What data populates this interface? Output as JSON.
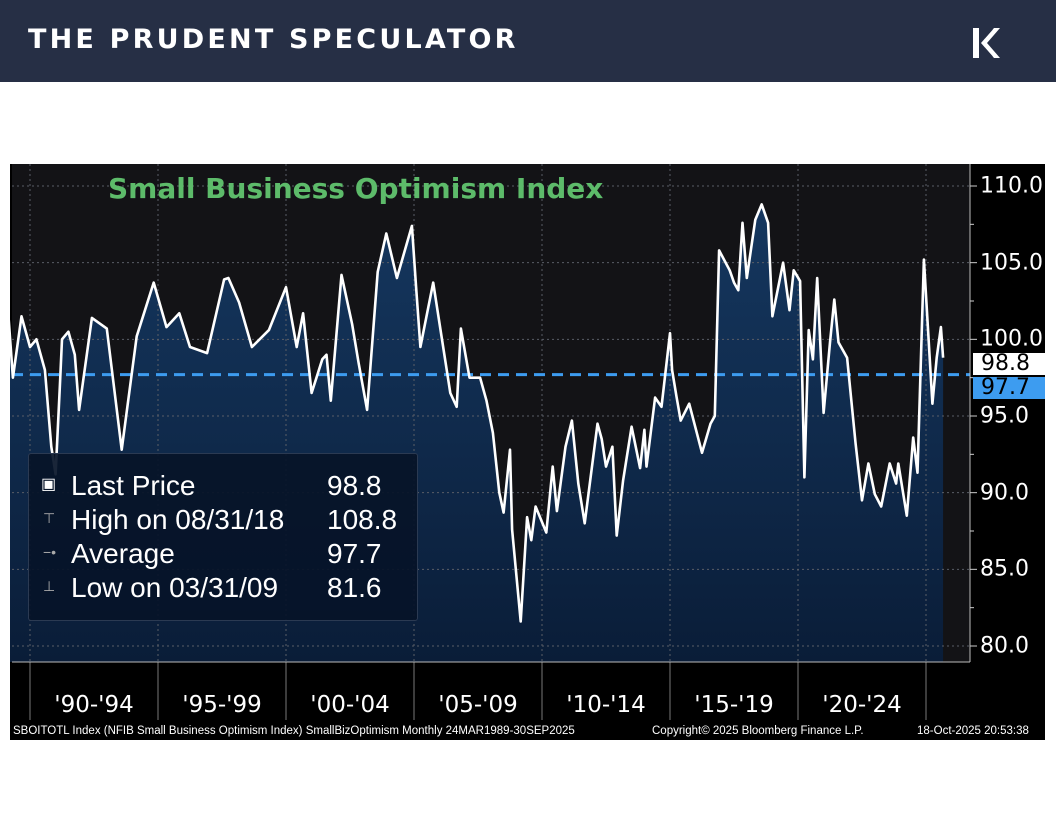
{
  "header": {
    "brand": "THE PRUDENT SPECULATOR",
    "logo_icon": "k-chevron-logo",
    "background": "#262f45"
  },
  "chart_data": {
    "type": "area",
    "title": "Small Business Optimism Index",
    "title_color": "#5dbb6a",
    "line_color": "#ffffff",
    "fill_color": "#0f2a4c",
    "average_line_color": "#3d9cf0",
    "y_axis": {
      "position": "right",
      "range": [
        80,
        110
      ],
      "ticks": [
        "110.0",
        "105.0",
        "100.0",
        "95.0",
        "90.0",
        "85.0",
        "80.0"
      ]
    },
    "x_axis": {
      "range": [
        "1989-03",
        "2025-09"
      ],
      "tick_labels": [
        "'90-'94",
        "'95-'99",
        "'00-'04",
        "'05-'09",
        "'10-'14",
        "'15-'19",
        "'20-'24"
      ]
    },
    "grid": true,
    "legend": {
      "placement": "bottom-left",
      "rows": [
        {
          "label": "Last Price",
          "value": "98.8"
        },
        {
          "label": "High on 08/31/18",
          "value": "108.8"
        },
        {
          "label": "Average",
          "value": "97.7"
        },
        {
          "label": "Low on 03/31/09",
          "value": "81.6"
        }
      ]
    },
    "last_price_tag": "98.8",
    "average_tag": "97.7",
    "average": 97.7,
    "series": [
      {
        "dates": [
          "1989-03",
          "1989-05",
          "1989-09",
          "1990-01",
          "1990-04",
          "1990-08",
          "1990-11",
          "1991-01",
          "1991-03",
          "1991-04",
          "1991-07",
          "1991-10",
          "1991-12",
          "1992-06",
          "1993-01",
          "1993-08",
          "1994-03",
          "1994-11",
          "1995-05",
          "1995-11",
          "1996-04",
          "1996-12",
          "1997-08",
          "1997-10",
          "1998-03",
          "1998-09",
          "1999-05",
          "2000-01",
          "2000-06",
          "2000-09",
          "2001-01",
          "2001-06",
          "2001-08",
          "2001-10",
          "2002-03",
          "2002-08",
          "2002-11",
          "2003-03",
          "2003-08",
          "2003-12",
          "2004-05",
          "2004-12",
          "2005-02",
          "2005-04",
          "2005-10",
          "2006-01",
          "2006-06",
          "2006-09",
          "2006-11",
          "2007-03",
          "2007-08",
          "2007-11",
          "2008-02",
          "2008-05",
          "2008-07",
          "2008-10",
          "2008-11",
          "2009-03",
          "2009-06",
          "2009-08",
          "2009-10",
          "2010-03",
          "2010-06",
          "2010-08",
          "2010-12",
          "2011-03",
          "2011-06",
          "2011-09",
          "2012-03",
          "2012-05",
          "2012-07",
          "2012-10",
          "2012-12",
          "2013-03",
          "2013-07",
          "2013-11",
          "2014-01",
          "2014-02",
          "2014-06",
          "2014-09",
          "2015-01",
          "2015-02",
          "2015-04",
          "2015-06",
          "2015-10",
          "2016-04",
          "2016-08",
          "2016-10",
          "2016-12",
          "2017-05",
          "2017-07",
          "2017-09",
          "2017-11",
          "2018-01",
          "2018-05",
          "2018-08",
          "2018-11",
          "2019-01",
          "2019-06",
          "2019-09",
          "2019-11",
          "2020-02",
          "2020-04",
          "2020-06",
          "2020-08",
          "2020-10",
          "2021-01",
          "2021-04",
          "2021-06",
          "2021-08",
          "2021-12",
          "2022-04",
          "2022-07",
          "2022-10",
          "2023-01",
          "2023-04",
          "2023-08",
          "2023-11",
          "2023-12",
          "2024-04",
          "2024-07",
          "2024-09",
          "2024-12",
          "2025-04",
          "2025-06",
          "2025-08",
          "2025-09"
        ],
        "values": [
          101.3,
          97.5,
          101.5,
          99.5,
          100,
          98,
          93,
          91.2,
          97,
          100,
          100.5,
          99,
          95.4,
          101.4,
          100.7,
          92.8,
          100.2,
          103.7,
          100.8,
          101.7,
          99.5,
          99.1,
          103.9,
          104,
          102.4,
          99.5,
          100.6,
          103.4,
          99.5,
          101.7,
          96.5,
          98.7,
          99,
          96,
          104.2,
          101,
          98.5,
          95.4,
          104.4,
          106.9,
          104,
          107.4,
          103.4,
          99.5,
          103.7,
          101,
          96.5,
          95.6,
          100.7,
          97.5,
          97.5,
          96,
          93.9,
          90,
          88.7,
          92.8,
          87.6,
          81.6,
          88.4,
          86.9,
          89.1,
          87.4,
          91.7,
          88.8,
          93,
          94.7,
          90.6,
          88,
          94.5,
          93.5,
          91.7,
          93,
          87.2,
          90.8,
          94.3,
          91.6,
          94.1,
          91.7,
          96.2,
          95.6,
          100.4,
          98,
          96.3,
          94.7,
          95.8,
          92.6,
          94.5,
          95,
          105.8,
          104.5,
          103.7,
          103.2,
          107.6,
          104,
          107.8,
          108.8,
          107.6,
          101.5,
          105,
          101.9,
          104.5,
          103.8,
          91,
          100.6,
          98.7,
          104,
          95.2,
          99.8,
          102.6,
          99.8,
          98.8,
          93.2,
          89.5,
          91.9,
          89.9,
          89.1,
          91.9,
          90.6,
          91.9,
          88.5,
          93.6,
          91.3,
          105.2,
          95.8,
          98.8,
          100.8,
          98.8
        ]
      }
    ]
  },
  "footer": {
    "description": "SBOITOTL Index (NFIB Small Business Optimism Index) SmallBizOptimism Monthly 24MAR1989-30SEP2025",
    "copyright": "Copyright© 2025 Bloomberg Finance L.P.",
    "timestamp": "18-Oct-2025 20:53:38"
  }
}
